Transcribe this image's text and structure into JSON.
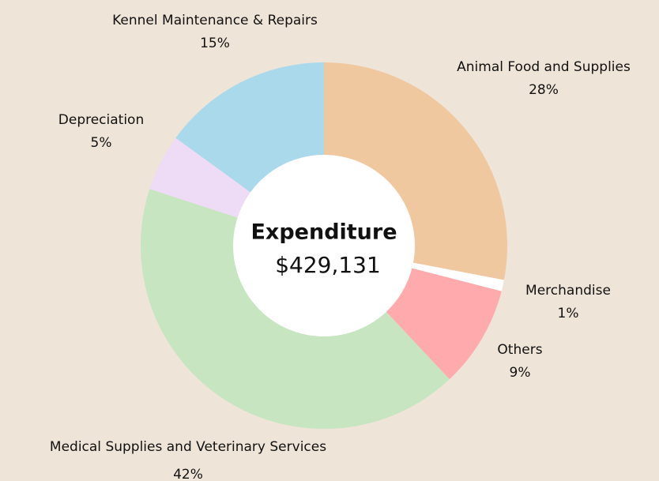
{
  "chart_data": {
    "type": "donut",
    "center_title": "Expenditure",
    "center_value": "$429,131",
    "categories": [
      "Animal Food and Supplies",
      "Merchandise",
      "Others",
      "Medical Supplies and Veterinary Services",
      "Depreciation",
      "Kennel Maintenance & Repairs"
    ],
    "values": [
      28,
      1,
      9,
      42,
      5,
      15
    ],
    "value_labels": [
      "28%",
      "1%",
      "9%",
      "42%",
      "5%",
      "15%"
    ],
    "colors": [
      "#f0c8a0",
      "#ffffff",
      "#ffaaad",
      "#c6e5c0",
      "#eedcf6",
      "#a9d9ea"
    ]
  }
}
